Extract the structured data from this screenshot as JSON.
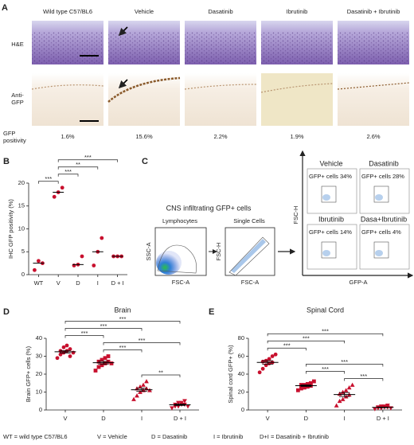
{
  "figure": {
    "panel_labels": [
      "A",
      "B",
      "C",
      "D",
      "E"
    ],
    "panel_a": {
      "columns": [
        "Wild type C57/BL6",
        "Vehicle",
        "Dasatinib",
        "Ibrutinib",
        "Dasatinib + Ibrutinib"
      ],
      "row_he": "H&E",
      "row_gfp": [
        "Anti-",
        "GFP"
      ],
      "positivity_label": [
        "GFP",
        "positivity"
      ],
      "positivity": [
        "1.6%",
        "15.6%",
        "2.2%",
        "1.9%",
        "2.6%"
      ]
    },
    "panel_c": {
      "title": "CNS infiltrating GFP+ cells",
      "gates": [
        "Lymphocytes",
        "Single Cells"
      ],
      "ssc": "SSC-A",
      "fsc": "FSC-A",
      "fsch": "FSC-H",
      "gfp": "GFP-A",
      "treatments": [
        {
          "name": "Vehicle",
          "label": "GFP+ cells 34%"
        },
        {
          "name": "Dasatinib",
          "label": "GFP+ cells 28%"
        },
        {
          "name": "Ibrutinib",
          "label": "GFP+ cells 14%"
        },
        {
          "name": "Dasa+Ibrutinib",
          "label": "GFP+ cells 4%"
        }
      ]
    },
    "footer": [
      "WT = wild type C57/BL6",
      "V = Vehicle",
      "D = Dasatinib",
      "I = Ibrutinib",
      "D+I = Dasatinib + Ibrutinib"
    ]
  },
  "chart_data": [
    {
      "type": "dot",
      "ylabel": "IHC GFP positivity (%)",
      "categories": [
        "WT",
        "V",
        "D",
        "I",
        "D + I"
      ],
      "values": [
        [
          1,
          3,
          2.5
        ],
        [
          17,
          18,
          19
        ],
        [
          2,
          2.2,
          4
        ],
        [
          2,
          5,
          8
        ],
        [
          4,
          4,
          4
        ]
      ],
      "color": "#c8102e",
      "markers": [
        "circle",
        "circle",
        "circle",
        "circle",
        "circle"
      ],
      "summary": "median",
      "ylim": [
        0,
        20
      ],
      "yticks": [
        0,
        5,
        10,
        15,
        20
      ],
      "comparisons": [
        {
          "pair": [
            "WT",
            "V"
          ],
          "label": "***"
        },
        {
          "pair": [
            "V",
            "D"
          ],
          "label": "***"
        },
        {
          "pair": [
            "V",
            "I"
          ],
          "label": "**"
        },
        {
          "pair": [
            "V",
            "D + I"
          ],
          "label": "***"
        }
      ]
    },
    {
      "type": "dot",
      "title": "Brain",
      "ylabel": "Brain GFP+ cells (%)",
      "categories": [
        "V",
        "D",
        "I",
        "D + I"
      ],
      "values": [
        [
          29,
          31,
          32,
          33,
          34,
          33,
          35,
          36,
          30,
          32
        ],
        [
          22,
          24,
          25,
          26,
          27,
          27,
          28,
          29,
          30,
          26
        ],
        [
          6,
          8,
          10,
          11,
          12,
          12,
          13,
          14,
          16,
          11
        ],
        [
          1,
          2,
          2,
          3,
          3,
          3,
          4,
          4,
          5,
          2
        ]
      ],
      "color": "#c8102e",
      "markers": [
        "circle",
        "square",
        "triangle",
        "triangle-down"
      ],
      "summary": "mean",
      "ylim": [
        0,
        40
      ],
      "yticks": [
        0,
        10,
        20,
        30,
        40
      ],
      "comparisons": [
        {
          "pair": [
            "I",
            "D + I"
          ],
          "label": "**"
        },
        {
          "pair": [
            "D",
            "I"
          ],
          "label": "***"
        },
        {
          "pair": [
            "D",
            "D + I"
          ],
          "label": "***"
        },
        {
          "pair": [
            "V",
            "D"
          ],
          "label": "***"
        },
        {
          "pair": [
            "V",
            "I"
          ],
          "label": "***"
        },
        {
          "pair": [
            "V",
            "D + I"
          ],
          "label": "***"
        }
      ]
    },
    {
      "type": "dot",
      "title": "Spinal Cord",
      "ylabel": "Spinal cord GFP+ (%)",
      "categories": [
        "V",
        "D",
        "I",
        "D + I"
      ],
      "values": [
        [
          42,
          46,
          50,
          52,
          53,
          54,
          55,
          57,
          60,
          62
        ],
        [
          22,
          24,
          25,
          26,
          27,
          28,
          28,
          29,
          30,
          32
        ],
        [
          5,
          10,
          12,
          15,
          17,
          18,
          20,
          22,
          25,
          28
        ],
        [
          1,
          2,
          2,
          3,
          3,
          3,
          4,
          4,
          5,
          2
        ]
      ],
      "color": "#c8102e",
      "markers": [
        "circle",
        "square",
        "triangle",
        "triangle-down"
      ],
      "summary": "mean",
      "ylim": [
        0,
        80
      ],
      "yticks": [
        0,
        20,
        40,
        60,
        80
      ],
      "comparisons": [
        {
          "pair": [
            "I",
            "D + I"
          ],
          "label": "***"
        },
        {
          "pair": [
            "D",
            "I"
          ],
          "label": "***"
        },
        {
          "pair": [
            "D",
            "D + I"
          ],
          "label": "***"
        },
        {
          "pair": [
            "V",
            "D"
          ],
          "label": "***"
        },
        {
          "pair": [
            "V",
            "I"
          ],
          "label": "***"
        },
        {
          "pair": [
            "V",
            "D + I"
          ],
          "label": "***"
        }
      ]
    }
  ]
}
